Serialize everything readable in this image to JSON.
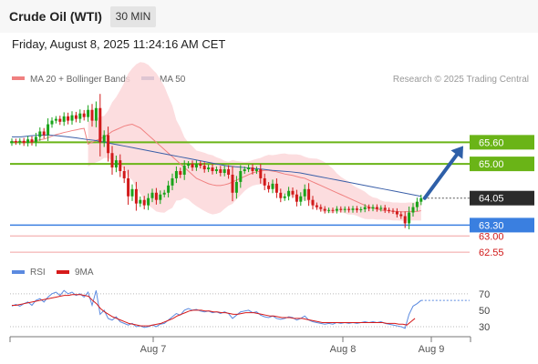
{
  "header": {
    "title": "Crude Oil (WTI)",
    "timeframe": "30 MIN",
    "datetime": "Friday, August 8, 2025 11:24:16 AM CET"
  },
  "legend": {
    "ma20_label": "MA 20 + Bollinger Bands",
    "ma50_label": "MA 50",
    "credit": "Research © 2025 Trading Central",
    "rsi_label": "RSI",
    "rsi_ma_label": "9MA"
  },
  "colors": {
    "bull": "#1aa31a",
    "bear": "#d11a1a",
    "ma20": "#f08080",
    "ma50": "#3a5fa8",
    "band_fill": "#fbd7d9",
    "resistance": "#6ab417",
    "support": "#3a7fe0",
    "support_minor": "#f2a0a0",
    "rsi": "#5b8ae0",
    "rsi_ma": "#d61a1a",
    "arrow": "#2e5fa8",
    "current_price_bg": "#2b2b2b"
  },
  "chart_data": [
    {
      "type": "candlestick",
      "x_ticks": [
        "Aug 7",
        "Aug 8",
        "Aug 9"
      ],
      "levels": [
        {
          "value": 65.6,
          "label": "65.60",
          "kind": "resistance"
        },
        {
          "value": 65.0,
          "label": "65.00",
          "kind": "resistance"
        },
        {
          "value": 64.05,
          "label": "64.05",
          "kind": "current"
        },
        {
          "value": 63.3,
          "label": "63.30",
          "kind": "support"
        },
        {
          "value": 63.0,
          "label": "63.00",
          "kind": "support-minor"
        },
        {
          "value": 62.55,
          "label": "62.55",
          "kind": "support-minor"
        }
      ],
      "ylim": [
        62.35,
        67.15
      ],
      "closes": [
        65.63,
        65.6,
        65.64,
        65.58,
        65.68,
        65.6,
        65.75,
        65.9,
        65.8,
        66.1,
        66.2,
        66.25,
        66.17,
        66.32,
        66.2,
        66.35,
        66.25,
        66.4,
        66.3,
        66.5,
        66.2,
        66.55,
        65.6,
        65.8,
        65.3,
        64.9,
        65.1,
        64.8,
        64.6,
        64.1,
        64.3,
        63.9,
        64.0,
        63.85,
        64.05,
        64.2,
        64.0,
        64.15,
        64.2,
        64.4,
        64.6,
        64.8,
        64.7,
        64.95,
        65.0,
        64.9,
        65.0,
        64.95,
        64.85,
        64.9,
        64.8,
        64.85,
        64.75,
        64.85,
        64.7,
        64.2,
        64.5,
        64.8,
        64.85,
        64.9,
        64.8,
        64.85,
        64.6,
        64.4,
        64.3,
        64.45,
        64.2,
        64.05,
        64.1,
        64.25,
        64.15,
        63.95,
        64.1,
        64.3,
        64.0,
        63.85,
        63.8,
        63.75,
        63.7,
        63.72,
        63.7,
        63.75,
        63.72,
        63.75,
        63.72,
        63.76,
        63.72,
        63.74,
        63.8,
        63.76,
        63.8,
        63.75,
        63.78,
        63.72,
        63.7,
        63.68,
        63.6,
        63.55,
        63.35,
        63.65,
        63.8,
        63.95,
        64.05
      ],
      "ma20": [
        65.55,
        65.6,
        65.65,
        65.7,
        65.75,
        65.82,
        65.9,
        65.95,
        66.0,
        66.05,
        66.08,
        66.1,
        66.05,
        66.0,
        65.9,
        65.8,
        65.7,
        65.6,
        65.5,
        65.4,
        65.3,
        65.2,
        65.1,
        65.0,
        64.9,
        64.8,
        64.7,
        64.6,
        64.55,
        64.5,
        64.45,
        64.42,
        64.4,
        64.4,
        64.42,
        64.45,
        64.5,
        64.55,
        64.6,
        64.65,
        64.7,
        64.75,
        64.78,
        64.8,
        64.82,
        64.82,
        64.8,
        64.78,
        64.75,
        64.72,
        64.7,
        64.68,
        64.65,
        64.62,
        64.6,
        64.55,
        64.5,
        64.45,
        64.4,
        64.35,
        64.3,
        64.25,
        64.2,
        64.15,
        64.1,
        64.05,
        64.0,
        63.95,
        63.9,
        63.85,
        63.8,
        63.77,
        63.75,
        63.72,
        63.7,
        63.7,
        63.68,
        63.68,
        63.67,
        63.67,
        63.68,
        63.68,
        63.68,
        63.7
      ],
      "ma50": [
        65.75,
        65.75,
        65.78,
        65.8,
        65.8,
        65.78,
        65.75,
        65.72,
        65.68,
        65.65,
        65.6,
        65.55,
        65.5,
        65.45,
        65.4,
        65.35,
        65.3,
        65.25,
        65.2,
        65.15,
        65.1,
        65.05,
        65.0,
        64.95,
        64.92,
        64.9,
        64.87,
        64.85,
        64.82,
        64.8,
        64.78,
        64.75,
        64.7,
        64.65,
        64.6,
        64.55,
        64.5,
        64.45,
        64.4,
        64.35,
        64.3,
        64.25,
        64.2,
        64.15,
        64.1
      ],
      "rsi_axis": {
        "ticks": [
          70,
          50,
          30
        ],
        "ylim": [
          20,
          82
        ]
      },
      "rsi": [
        55,
        57,
        55,
        58,
        60,
        56,
        62,
        64,
        60,
        66,
        70,
        72,
        68,
        74,
        70,
        72,
        68,
        70,
        66,
        72,
        56,
        74,
        45,
        50,
        40,
        38,
        42,
        36,
        34,
        32,
        34,
        30,
        31,
        29,
        30,
        32,
        30,
        33,
        34,
        38,
        42,
        46,
        44,
        50,
        52,
        50,
        51,
        49,
        48,
        49,
        47,
        48,
        46,
        48,
        46,
        40,
        44,
        48,
        49,
        50,
        47,
        48,
        44,
        42,
        41,
        43,
        40,
        39,
        40,
        42,
        41,
        38,
        40,
        43,
        38,
        36,
        35,
        34,
        33,
        34,
        33,
        35,
        34,
        35,
        34,
        35,
        34,
        35,
        36,
        35,
        36,
        35,
        36,
        34,
        33,
        32,
        31,
        30,
        28,
        45,
        55,
        58,
        62
      ],
      "rsi_ma": [
        56,
        56,
        57,
        58,
        59,
        60,
        61,
        62,
        63,
        64,
        65,
        66,
        67,
        68,
        68,
        69,
        69,
        69,
        68,
        67,
        62,
        58,
        52,
        48,
        45,
        42,
        40,
        38,
        36,
        34,
        33,
        32,
        31,
        31,
        31,
        32,
        33,
        34,
        36,
        38,
        40,
        43,
        45,
        47,
        49,
        50,
        50,
        50,
        49,
        49,
        48,
        48,
        47,
        47,
        46,
        45,
        45,
        46,
        47,
        47,
        47,
        46,
        45,
        44,
        43,
        43,
        42,
        41,
        41,
        41,
        40,
        40,
        40,
        39,
        38,
        37,
        36,
        35,
        35,
        35,
        35,
        35,
        35,
        35,
        35,
        35,
        35,
        35,
        35,
        35,
        35,
        35,
        35,
        34,
        34,
        34,
        33,
        33,
        32,
        36,
        40
      ]
    }
  ]
}
